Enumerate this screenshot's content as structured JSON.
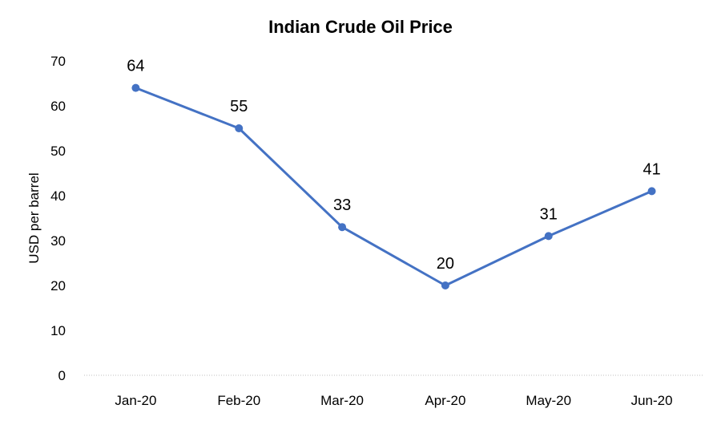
{
  "chart_data": {
    "type": "line",
    "title": "Indian Crude Oil Price",
    "xlabel": "",
    "ylabel": "USD per barrel",
    "categories": [
      "Jan-20",
      "Feb-20",
      "Mar-20",
      "Apr-20",
      "May-20",
      "Jun-20"
    ],
    "series": [
      {
        "values": [
          64,
          55,
          33,
          20,
          31,
          41
        ],
        "color": "#4472C4"
      }
    ],
    "ylim": [
      0,
      70
    ],
    "yticks": [
      0,
      10,
      20,
      30,
      40,
      50,
      60,
      70
    ],
    "grid": false,
    "legend": "none",
    "data_labels": true
  }
}
